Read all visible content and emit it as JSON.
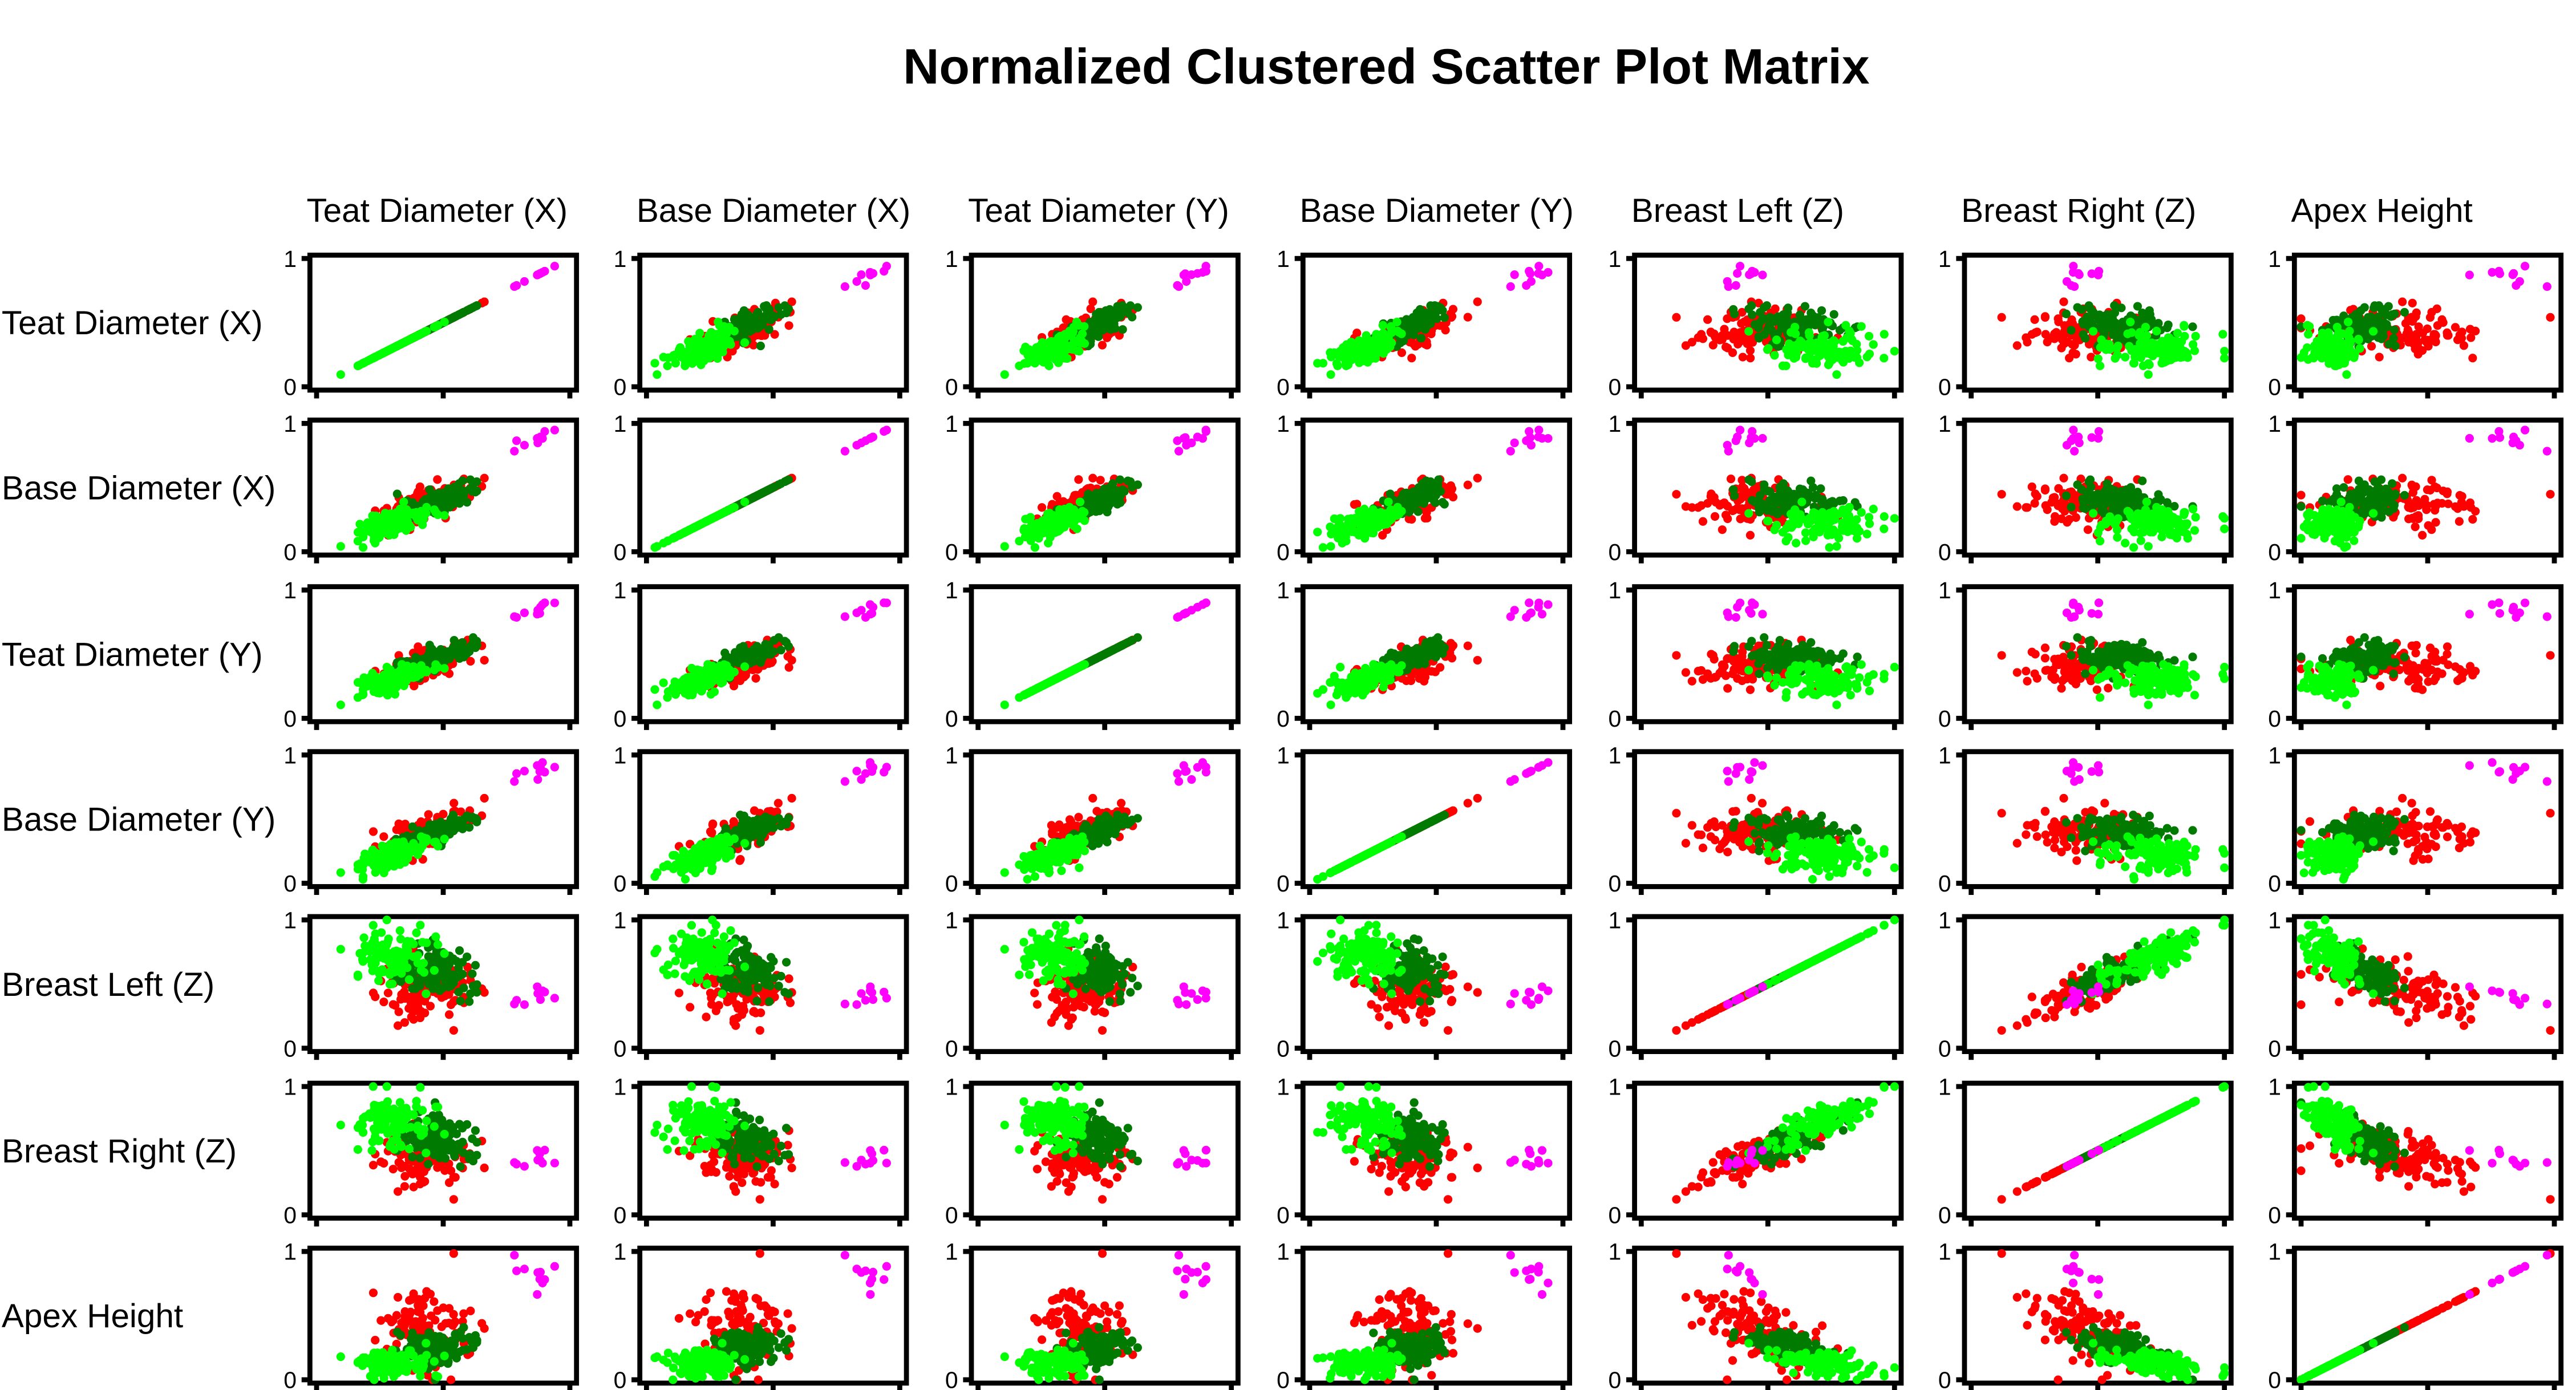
{
  "chart_data": {
    "type": "scatter",
    "title": "Normalized Clustered Scatter Plot Matrix",
    "variables": [
      "Teat Diameter (X)",
      "Base Diameter (X)",
      "Teat Diameter (Y)",
      "Base Diameter (Y)",
      "Breast Left (Z)",
      "Breast Right (Z)",
      "Apex Height"
    ],
    "ylim": [
      0,
      1
    ],
    "xlim": [
      0,
      1
    ],
    "y_tick_labels": [
      "0",
      "1"
    ],
    "x_tick_values": [
      0,
      0.5,
      1.0
    ],
    "grid": false,
    "cluster_colors": [
      "#ff0000",
      "#007a00",
      "#00ff00",
      "#ff00ff"
    ],
    "clusters": [
      {
        "color": "#ff0000",
        "centroid": [
          0.42,
          0.38,
          0.4,
          0.4,
          0.45,
          0.45,
          0.4
        ],
        "spread": [
          0.1,
          0.1,
          0.1,
          0.1,
          0.14,
          0.14,
          0.18
        ],
        "count": 110
      },
      {
        "color": "#007a00",
        "centroid": [
          0.48,
          0.4,
          0.48,
          0.4,
          0.6,
          0.6,
          0.25
        ],
        "spread": [
          0.07,
          0.07,
          0.07,
          0.07,
          0.1,
          0.1,
          0.08
        ],
        "count": 110
      },
      {
        "color": "#00ff00",
        "centroid": [
          0.3,
          0.22,
          0.3,
          0.22,
          0.72,
          0.72,
          0.15
        ],
        "spread": [
          0.08,
          0.08,
          0.08,
          0.08,
          0.12,
          0.12,
          0.07
        ],
        "count": 120
      },
      {
        "color": "#ff00ff",
        "centroid": [
          0.86,
          0.88,
          0.86,
          0.88,
          0.38,
          0.4,
          0.85
        ],
        "spread": [
          0.06,
          0.06,
          0.06,
          0.06,
          0.05,
          0.05,
          0.08
        ],
        "count": 10
      }
    ]
  }
}
